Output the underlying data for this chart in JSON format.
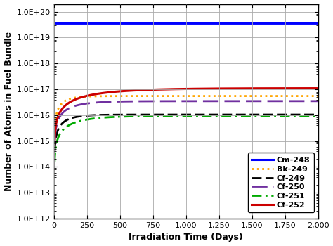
{
  "title": "",
  "xlabel": "Irradiation Time (Days)",
  "ylabel": "Number of Atoms in Fuel Bundle",
  "xlim": [
    0,
    2000
  ],
  "ylim_log": [
    1000000000000.0,
    2e+20
  ],
  "xticks": [
    0,
    250,
    500,
    750,
    1000,
    1250,
    1500,
    1750,
    2000
  ],
  "xtick_labels": [
    "0",
    "250",
    "500",
    "750",
    "1,000",
    "1,250",
    "1,500",
    "1,750",
    "2,000"
  ],
  "series": [
    {
      "label": "Cm-248",
      "color": "#0000ff",
      "linestyle": "solid",
      "linewidth": 2.2,
      "y_flat": 3.5e+19,
      "type": "flat"
    },
    {
      "label": "Bk-249",
      "color": "#ffa500",
      "linestyle": "dotted",
      "linewidth": 2.0,
      "type": "grow",
      "y_max": 5.5e+16,
      "tau": 80
    },
    {
      "label": "Cf-249",
      "color": "#000000",
      "linestyle": "dashed",
      "linewidth": 2.0,
      "type": "grow",
      "y_max": 1.05e+16,
      "tau": 100
    },
    {
      "label": "Cf-250",
      "color": "#7030a0",
      "linestyle": "dashdash",
      "linewidth": 2.0,
      "type": "grow",
      "y_max": 3.5e+16,
      "tau": 150
    },
    {
      "label": "Cf-251",
      "color": "#00aa00",
      "linestyle": "dashdotdot",
      "linewidth": 2.0,
      "type": "grow",
      "y_max": 9500000000000000.0,
      "tau": 200
    },
    {
      "label": "Cf-252",
      "color": "#cc0000",
      "linestyle": "solid",
      "linewidth": 2.2,
      "type": "grow",
      "y_max": 1.1e+17,
      "tau": 350
    }
  ],
  "grid_color": "#aaaaaa",
  "background_color": "#ffffff",
  "tick_label_fontsize": 8,
  "axis_label_fontsize": 9,
  "legend_fontsize": 8
}
